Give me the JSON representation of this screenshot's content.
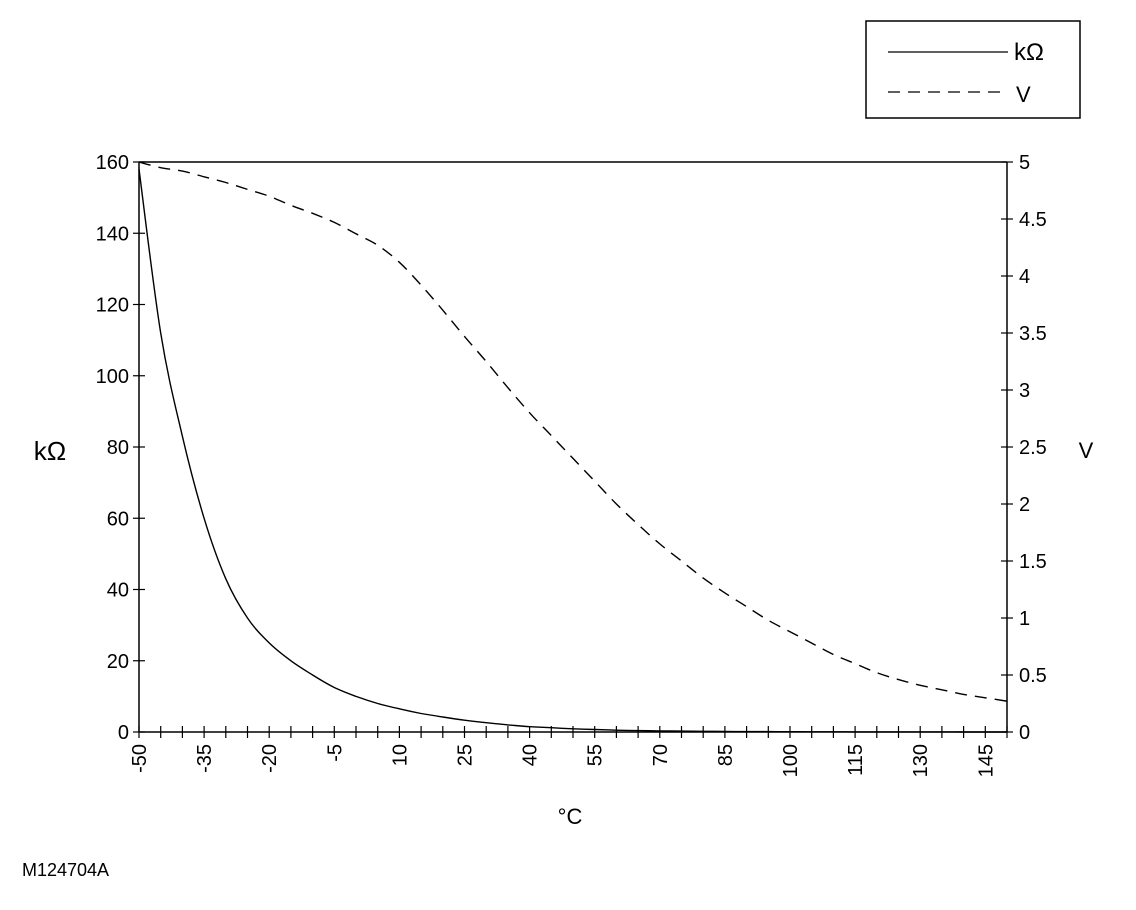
{
  "chart_data": {
    "type": "line",
    "x": [
      -50,
      -45,
      -40,
      -35,
      -30,
      -25,
      -20,
      -15,
      -10,
      -5,
      0,
      5,
      10,
      15,
      20,
      25,
      30,
      35,
      40,
      45,
      50,
      55,
      60,
      65,
      70,
      75,
      80,
      85,
      90,
      95,
      100,
      105,
      110,
      115,
      120,
      125,
      130,
      135,
      140,
      145,
      150
    ],
    "xlabel": "°C",
    "xlim": [
      -50,
      150
    ],
    "x_tick_labels": [
      "-50",
      "-35",
      "-20",
      "-5",
      "10",
      "25",
      "40",
      "55",
      "70",
      "85",
      "100",
      "115",
      "130",
      "145"
    ],
    "series": [
      {
        "name": "kΩ",
        "axis": "left",
        "style": "solid",
        "values": [
          158,
          112,
          83,
          60,
          43,
          32,
          25,
          20,
          16,
          12.5,
          10,
          8,
          6.5,
          5.2,
          4.2,
          3.3,
          2.6,
          2.0,
          1.5,
          1.2,
          0.9,
          0.7,
          0.5,
          0.4,
          0.3,
          0.25,
          0.2,
          0.15,
          0.12,
          0.1,
          0.08,
          0.06,
          0.05,
          0.04,
          0.03,
          0.03,
          0.02,
          0.02,
          0.01,
          0.01,
          0.01
        ]
      },
      {
        "name": "V",
        "axis": "right",
        "style": "dashed",
        "values": [
          5.0,
          4.95,
          4.92,
          4.87,
          4.82,
          4.76,
          4.7,
          4.62,
          4.55,
          4.47,
          4.37,
          4.27,
          4.12,
          3.92,
          3.7,
          3.47,
          3.25,
          3.02,
          2.8,
          2.6,
          2.4,
          2.2,
          2.0,
          1.82,
          1.65,
          1.5,
          1.35,
          1.22,
          1.1,
          0.98,
          0.88,
          0.78,
          0.68,
          0.6,
          0.52,
          0.46,
          0.41,
          0.37,
          0.33,
          0.3,
          0.27
        ]
      }
    ],
    "left_axis": {
      "label": "kΩ",
      "ylim": [
        0,
        160
      ],
      "ticks": [
        "0",
        "20",
        "40",
        "60",
        "80",
        "100",
        "120",
        "140",
        "160"
      ]
    },
    "right_axis": {
      "label": "V",
      "ylim": [
        0,
        5
      ],
      "ticks": [
        "0",
        "0.5",
        "1",
        "1.5",
        "2",
        "2.5",
        "3",
        "3.5",
        "4",
        "4.5",
        "5"
      ]
    },
    "legend": {
      "placement": "top-right",
      "entries": [
        "kΩ",
        "V"
      ]
    },
    "grid": false
  },
  "figure_id": "M124704A"
}
